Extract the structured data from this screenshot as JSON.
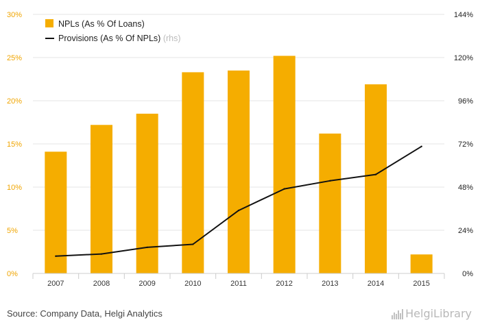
{
  "chart_data": {
    "type": "bar+line",
    "categories": [
      "2007",
      "2008",
      "2009",
      "2010",
      "2011",
      "2012",
      "2013",
      "2014",
      "2015"
    ],
    "series": [
      {
        "name": "NPLs (As % Of Loans)",
        "type": "bar",
        "axis": "left",
        "color": "#f5ad00",
        "values": [
          14.1,
          17.2,
          18.5,
          23.3,
          23.5,
          25.2,
          16.2,
          21.9,
          2.2
        ]
      },
      {
        "name": "Provisions (As % Of NPLs)",
        "suffix": "(rhs)",
        "type": "line",
        "axis": "right",
        "color": "#111111",
        "values": [
          9.6,
          10.8,
          14.5,
          16.2,
          35.0,
          47.0,
          51.5,
          55.0,
          70.6
        ]
      }
    ],
    "y_left": {
      "min": 0,
      "max": 30,
      "ticks": [
        "0%",
        "5%",
        "10%",
        "15%",
        "20%",
        "25%",
        "30%"
      ]
    },
    "y_right": {
      "min": 0,
      "max": 144,
      "ticks": [
        "0%",
        "24%",
        "48%",
        "72%",
        "96%",
        "120%",
        "144%"
      ]
    },
    "legend_position": "top-left"
  },
  "footer": {
    "source": "Source: Company Data, Helgi Analytics",
    "brand": "HelgiLibrary"
  }
}
